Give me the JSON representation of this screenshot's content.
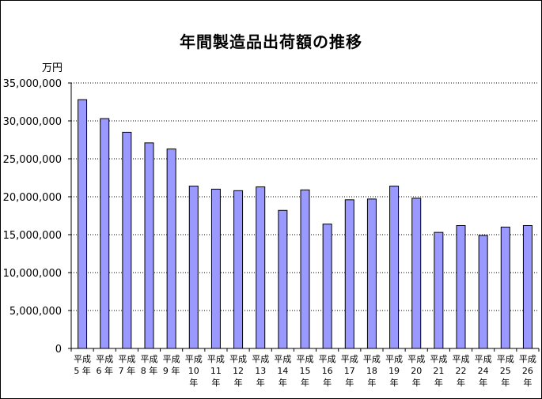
{
  "chart_data": {
    "type": "bar",
    "title": "年間製造品出荷額の推移",
    "ylabel": "万円",
    "xlabel": "",
    "ylim": [
      0,
      35000000
    ],
    "yticks": [
      0,
      5000000,
      10000000,
      15000000,
      20000000,
      25000000,
      30000000,
      35000000
    ],
    "ytick_labels": [
      "0",
      "5,000,000",
      "10,000,000",
      "15,000,000",
      "20,000,000",
      "25,000,000",
      "30,000,000",
      "35,000,000"
    ],
    "grid": true,
    "grid_style": "dotted",
    "legend": "none",
    "bar_color": "#9999ff",
    "bar_edge_color": "#000000",
    "categories": [
      "平成5年",
      "平成6年",
      "平成7年",
      "平成8年",
      "平成9年",
      "平成10年",
      "平成11年",
      "平成12年",
      "平成13年",
      "平成14年",
      "平成15年",
      "平成16年",
      "平成17年",
      "平成18年",
      "平成19年",
      "平成20年",
      "平成21年",
      "平成22年",
      "平成24年",
      "平成25年",
      "平成26年"
    ],
    "category_parts": [
      [
        "平成",
        "5",
        "年"
      ],
      [
        "平成",
        "6",
        "年"
      ],
      [
        "平成",
        "7",
        "年"
      ],
      [
        "平成",
        "8",
        "年"
      ],
      [
        "平成",
        "9",
        "年"
      ],
      [
        "平成",
        "10",
        "年"
      ],
      [
        "平成",
        "11",
        "年"
      ],
      [
        "平成",
        "12",
        "年"
      ],
      [
        "平成",
        "13",
        "年"
      ],
      [
        "平成",
        "14",
        "年"
      ],
      [
        "平成",
        "15",
        "年"
      ],
      [
        "平成",
        "16",
        "年"
      ],
      [
        "平成",
        "17",
        "年"
      ],
      [
        "平成",
        "18",
        "年"
      ],
      [
        "平成",
        "19",
        "年"
      ],
      [
        "平成",
        "20",
        "年"
      ],
      [
        "平成",
        "21",
        "年"
      ],
      [
        "平成",
        "22",
        "年"
      ],
      [
        "平成",
        "24",
        "年"
      ],
      [
        "平成",
        "25",
        "年"
      ],
      [
        "平成",
        "26",
        "年"
      ]
    ],
    "values": [
      32800000,
      30300000,
      28500000,
      27100000,
      26300000,
      21400000,
      21000000,
      20800000,
      21300000,
      18200000,
      20900000,
      16400000,
      19600000,
      19700000,
      21400000,
      19800000,
      15300000,
      16200000,
      14900000,
      16000000,
      16200000
    ]
  }
}
